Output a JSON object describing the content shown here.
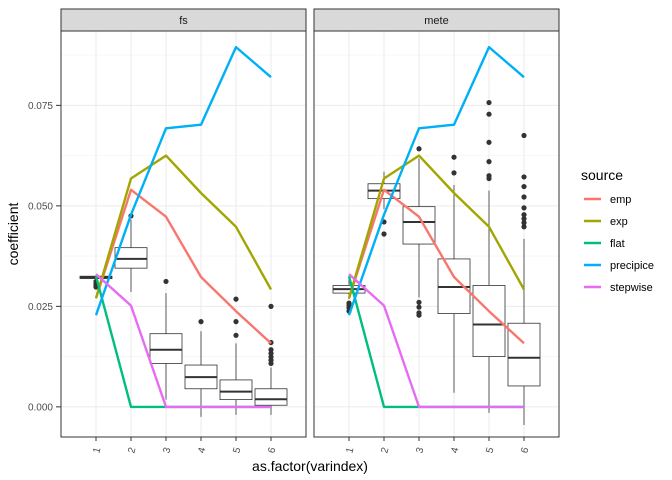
{
  "chart_data": {
    "type": "line",
    "xlabel": "as.factor(varindex)",
    "ylabel": "coefficient",
    "categories": [
      "1",
      "2",
      "3",
      "4",
      "5",
      "6"
    ],
    "ylim": [
      -0.0075,
      0.0935
    ],
    "y_ticks": [
      0.0,
      0.025,
      0.05,
      0.075
    ],
    "y_tick_labels": [
      "0.000",
      "0.025",
      "0.050",
      "0.075"
    ],
    "grid": true,
    "legend": {
      "title": "source",
      "position": "right"
    },
    "series": [
      {
        "name": "emp",
        "color": "#F8766D",
        "values": [
          0.027,
          0.054,
          0.0473,
          0.0323,
          0.0238,
          0.0158
        ]
      },
      {
        "name": "exp",
        "color": "#A3A500",
        "values": [
          0.027,
          0.0568,
          0.0625,
          0.0532,
          0.0448,
          0.0292
        ]
      },
      {
        "name": "flat",
        "color": "#00BF7D",
        "values": [
          0.0325,
          0.0,
          0.0,
          0.0,
          0.0,
          0.0
        ]
      },
      {
        "name": "precipice",
        "color": "#00B0F6",
        "values": [
          0.0228,
          0.0478,
          0.0693,
          0.0702,
          0.0895,
          0.082
        ]
      },
      {
        "name": "stepwise",
        "color": "#E76BF3",
        "values": [
          0.033,
          0.0252,
          0.0,
          0.0,
          0.0,
          0.0
        ]
      }
    ],
    "panels": [
      {
        "name": "fs",
        "boxes": [
          {
            "x": "1",
            "lower_whisker": 0.0318,
            "q1": 0.0319,
            "median": 0.0322,
            "q3": 0.0325,
            "upper_whisker": 0.0327,
            "outliers": [
              0.0298,
              0.0302,
              0.0306,
              0.0312
            ]
          },
          {
            "x": "2",
            "lower_whisker": 0.0286,
            "q1": 0.0345,
            "median": 0.0368,
            "q3": 0.0396,
            "upper_whisker": 0.0465,
            "outliers": [
              0.0475
            ]
          },
          {
            "x": "3",
            "lower_whisker": 0.0018,
            "q1": 0.0108,
            "median": 0.0142,
            "q3": 0.0182,
            "upper_whisker": 0.0283,
            "outliers": [
              0.0312
            ]
          },
          {
            "x": "4",
            "lower_whisker": -0.0025,
            "q1": 0.0045,
            "median": 0.0074,
            "q3": 0.0104,
            "upper_whisker": 0.0188,
            "outliers": [
              0.0212
            ]
          },
          {
            "x": "5",
            "lower_whisker": -0.002,
            "q1": 0.0018,
            "median": 0.0038,
            "q3": 0.0067,
            "upper_whisker": 0.0158,
            "outliers": [
              0.0178,
              0.0212,
              0.0268
            ]
          },
          {
            "x": "6",
            "lower_whisker": -0.002,
            "q1": 0.0004,
            "median": 0.0019,
            "q3": 0.0045,
            "upper_whisker": 0.0098,
            "outliers": [
              0.0108,
              0.0116,
              0.0124,
              0.0133,
              0.0142,
              0.016,
              0.025
            ]
          }
        ]
      },
      {
        "name": "mete",
        "boxes": [
          {
            "x": "1",
            "lower_whisker": 0.0268,
            "q1": 0.0283,
            "median": 0.0293,
            "q3": 0.0302,
            "upper_whisker": 0.0318,
            "outliers": [
              0.0238,
              0.0246,
              0.0252,
              0.0258
            ]
          },
          {
            "x": "2",
            "lower_whisker": 0.0492,
            "q1": 0.0518,
            "median": 0.0538,
            "q3": 0.0555,
            "upper_whisker": 0.0585,
            "outliers": [
              0.043,
              0.046
            ]
          },
          {
            "x": "3",
            "lower_whisker": 0.0272,
            "q1": 0.0405,
            "median": 0.046,
            "q3": 0.0498,
            "upper_whisker": 0.0618,
            "outliers": [
              0.0228,
              0.0234,
              0.0248,
              0.026,
              0.0642
            ]
          },
          {
            "x": "4",
            "lower_whisker": 0.0035,
            "q1": 0.0232,
            "median": 0.0298,
            "q3": 0.0368,
            "upper_whisker": 0.0552,
            "outliers": [
              0.0582,
              0.0621
            ]
          },
          {
            "x": "5",
            "lower_whisker": -0.0015,
            "q1": 0.0125,
            "median": 0.0205,
            "q3": 0.0302,
            "upper_whisker": 0.0538,
            "outliers": [
              0.0568,
              0.0575,
              0.061,
              0.0658,
              0.0728,
              0.0757
            ]
          },
          {
            "x": "6",
            "lower_whisker": -0.0045,
            "q1": 0.0052,
            "median": 0.0122,
            "q3": 0.0208,
            "upper_whisker": 0.0418,
            "outliers": [
              0.0448,
              0.0458,
              0.0468,
              0.0478,
              0.0495,
              0.0522,
              0.0548,
              0.0572,
              0.0675
            ]
          }
        ]
      }
    ]
  }
}
